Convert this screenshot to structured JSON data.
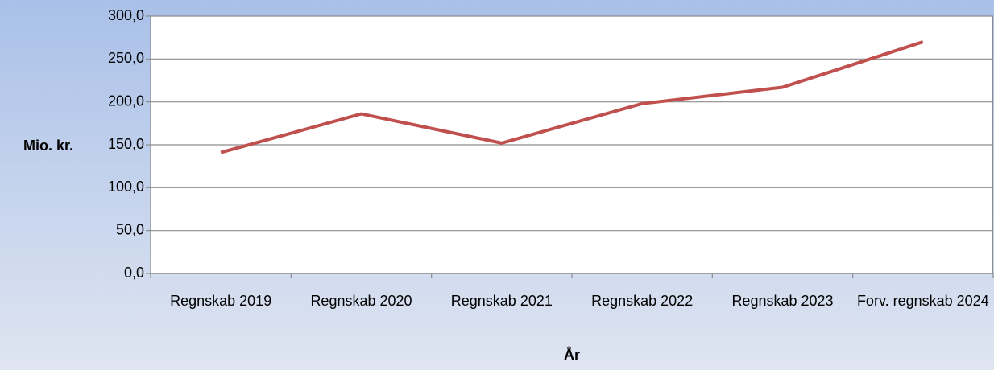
{
  "chart_data": {
    "type": "line",
    "x_label": "År",
    "y_label": "Mio. kr.",
    "categories": [
      "Regnskab 2019",
      "Regnskab 2020",
      "Regnskab 2021",
      "Regnskab 2022",
      "Regnskab 2023",
      "Forv. regnskab 2024"
    ],
    "series": [
      {
        "name": "Mio. kr.",
        "color": "#c0504d",
        "values": [
          141,
          186,
          152,
          198,
          217,
          270
        ]
      }
    ],
    "ylim": [
      0,
      300
    ],
    "yticks": [
      {
        "value": 0,
        "label": "0,0"
      },
      {
        "value": 50,
        "label": "50,0"
      },
      {
        "value": 100,
        "label": "100,0"
      },
      {
        "value": 150,
        "label": "150,0"
      },
      {
        "value": 200,
        "label": "200,0"
      },
      {
        "value": 250,
        "label": "250,0"
      },
      {
        "value": 300,
        "label": "300,0"
      }
    ],
    "grid": true
  }
}
